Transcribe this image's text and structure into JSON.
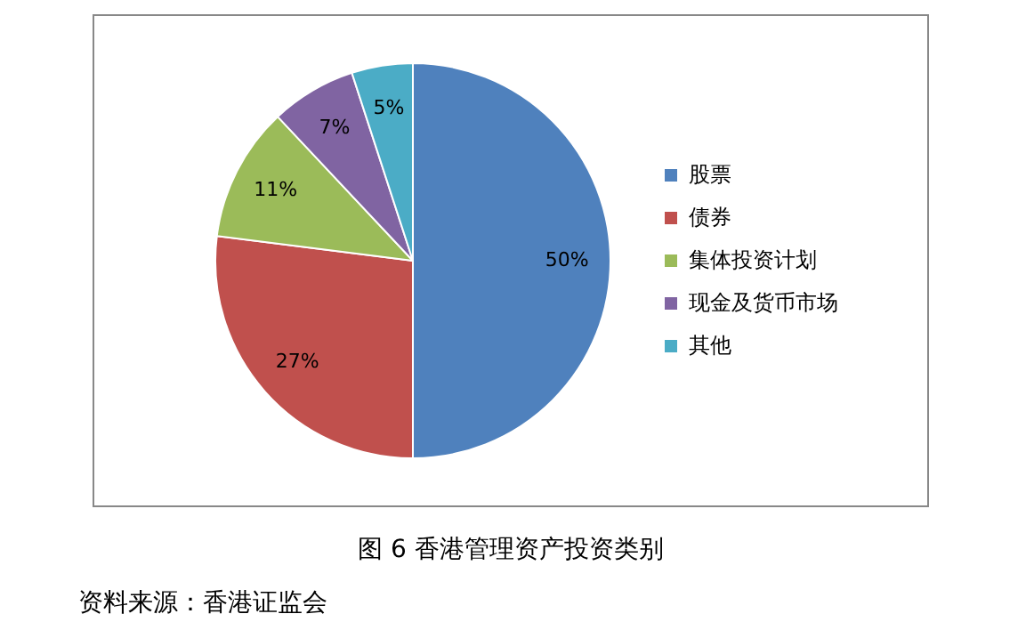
{
  "chart_data": {
    "type": "pie",
    "title": "图 6 香港管理资产投资类别",
    "categories": [
      "股票",
      "债券",
      "集体投资计划",
      "现金及货币市场",
      "其他"
    ],
    "values": [
      50,
      27,
      11,
      7,
      5
    ],
    "value_labels": [
      "50%",
      "27%",
      "11%",
      "7%",
      "5%"
    ],
    "colors": [
      "#4f81bd",
      "#c0504d",
      "#9bbb59",
      "#8064a2",
      "#4bacc6"
    ],
    "legend": "right",
    "annotations": [
      "资料来源：香港证监会"
    ]
  }
}
